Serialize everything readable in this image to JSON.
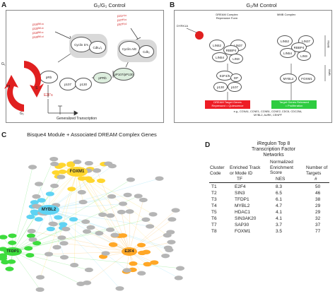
{
  "panel_a": {
    "letter": "A",
    "title": "G₁/G₁ Control",
    "inhibitors": [
      "p16ᴵᴺᴷ⁴ᵃ",
      "p15ᴵᴺᴷ⁴ᵇ",
      "p18ᴵᴺᴷ⁴ᶜ",
      "p19ᴵᴺᴷ⁴ᵈ"
    ],
    "kip_inhibitors": [
      "p21ᶜⁱᵖ¹",
      "p27ᴷⁱᵖ¹",
      "p57ᴷⁱᵖ²"
    ],
    "nodes": {
      "cyclin_d": "Cyclin D's",
      "cdk46": "Cdk₄/₆",
      "cyclin_ae": "Cyclin A/E",
      "cdk2": "Cdk₂",
      "prb": "pRb",
      "p107": "p107",
      "p130": "p130",
      "pprb": "pPRb",
      "pp107": "pP107/pP130"
    },
    "phases": {
      "g1": "G₁",
      "s": "S",
      "m": "M",
      "g2": "G₂"
    },
    "e2f": "E2F's",
    "transcription": "Generalized Transcription"
  },
  "panel_b": {
    "letter": "B",
    "title": "G₂/M Control",
    "dream_label": "DREAM Complex\nRepressive Form",
    "mmb_label": "MMB Complex",
    "dyrk": "DYRK1A",
    "dream_nodes": [
      "LIN52",
      "LIN37",
      "LIN54",
      "RBBP4",
      "LIN9",
      "E2F4/5",
      "DP",
      "p130",
      "p107"
    ],
    "mmb_nodes": [
      "LIN52",
      "LIN37",
      "LIN54",
      "RBBP4",
      "LIN9",
      "MYBL2",
      "FOXM1"
    ],
    "side_labels": [
      "MuvB",
      "BMB"
    ],
    "red_box": "DREAM Target Genes\nRepressed = Quiescence",
    "green_box": "Target Genes Released\n= Proliferation",
    "genes": "e.g., CCNA1, CCNE1, CCNB1, CCNE2, CDC6, CDC25A, MYBL2, AURK, CENPF"
  },
  "panel_c": {
    "letter": "C",
    "title": "Bisque4 Module + Associated DREAM Complex Genes",
    "hubs": [
      "FOXM1",
      "MYBL2",
      "TFDP1",
      "E2F4"
    ],
    "colors": {
      "foxm1": "#ffd62e",
      "mybl2": "#5fd3f3",
      "tfdp1": "#3ddc3d",
      "e2f4": "#ffa726",
      "grey": "#b5b5b5"
    }
  },
  "panel_d": {
    "letter": "D",
    "title_lines": [
      "iRegulon Top 8",
      "Transcription Factor",
      "Networks"
    ],
    "headers": {
      "code": [
        "Cluster",
        "Code"
      ],
      "track": [
        "Enriched Track",
        "or Mode ID"
      ],
      "score": [
        "Normalized",
        "Enrichment",
        "Score"
      ],
      "targets": [
        "Number of",
        "Targets"
      ]
    },
    "subheaders": [
      "TF",
      "NES",
      "#"
    ],
    "rows": [
      {
        "code": "T1",
        "tf": "E2F4",
        "nes": "8.3",
        "n": "50"
      },
      {
        "code": "T2",
        "tf": "SIN3",
        "nes": "6.5",
        "n": "46"
      },
      {
        "code": "T3",
        "tf": "TFDP1",
        "nes": "6.1",
        "n": "38"
      },
      {
        "code": "T4",
        "tf": "MYBL2",
        "nes": "4.7",
        "n": "29"
      },
      {
        "code": "T5",
        "tf": "HDAC1",
        "nes": "4.1",
        "n": "29"
      },
      {
        "code": "T6",
        "tf": "SIN3AK20",
        "nes": "4.1",
        "n": "32"
      },
      {
        "code": "T7",
        "tf": "SAP30",
        "nes": "3.7",
        "n": "37"
      },
      {
        "code": "T8",
        "tf": "FOXM1",
        "nes": "3.5",
        "n": "77"
      }
    ]
  }
}
